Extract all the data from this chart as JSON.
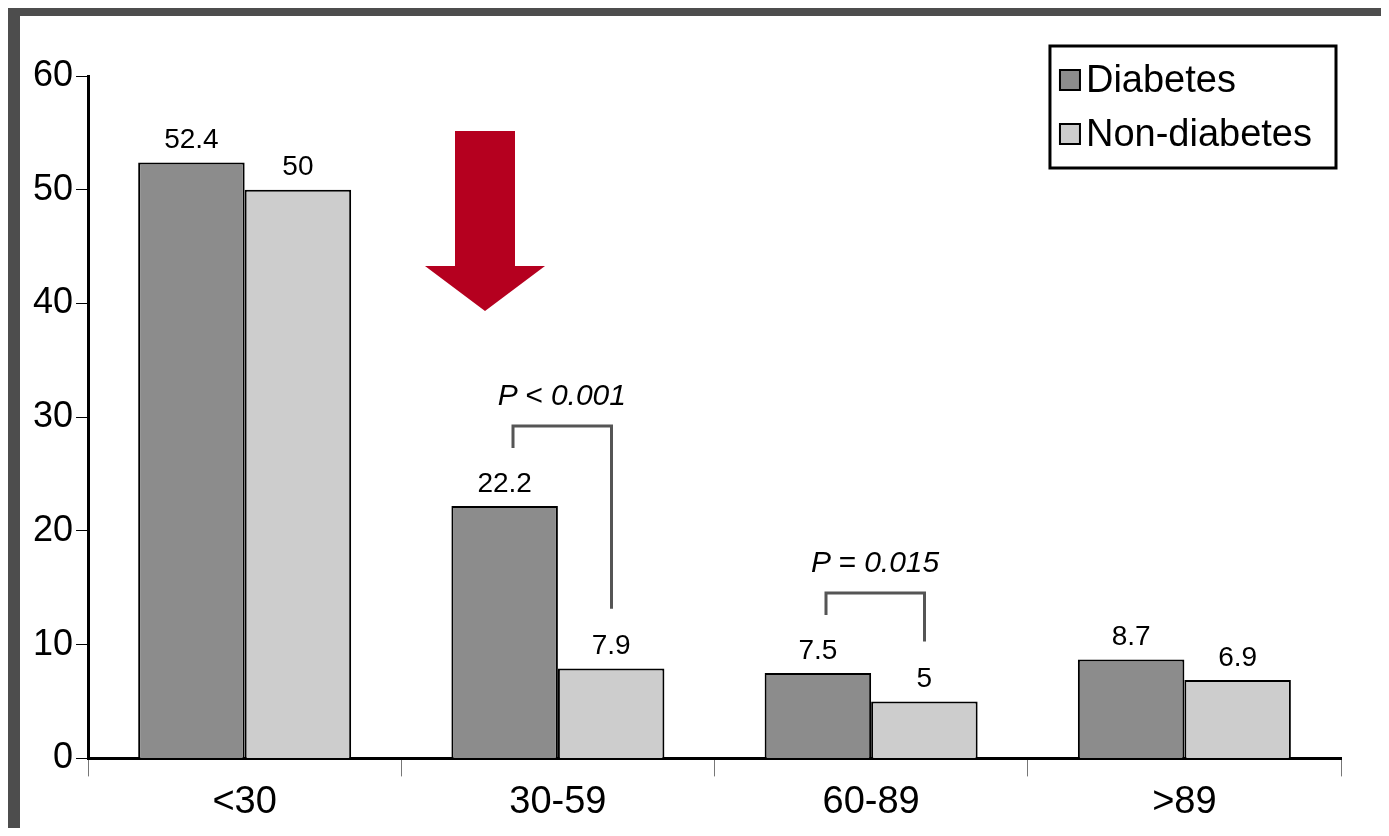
{
  "chart_data": {
    "type": "bar",
    "categories": [
      "<30",
      "30-59",
      "60-89",
      ">89"
    ],
    "series": [
      {
        "name": "Diabetes",
        "color": "#8c8c8c",
        "values": [
          52.4,
          22.2,
          7.5,
          8.7
        ]
      },
      {
        "name": "Non-diabetes",
        "color": "#cdcdcd",
        "values": [
          50,
          7.9,
          5,
          6.9
        ]
      }
    ],
    "ylim": [
      0,
      60
    ],
    "yticks": [
      0,
      10,
      20,
      30,
      40,
      50,
      60
    ],
    "grid": false,
    "legend": "top right",
    "data_labels": true,
    "annotations": [
      "P < 0.001",
      "P = 0.015"
    ]
  }
}
